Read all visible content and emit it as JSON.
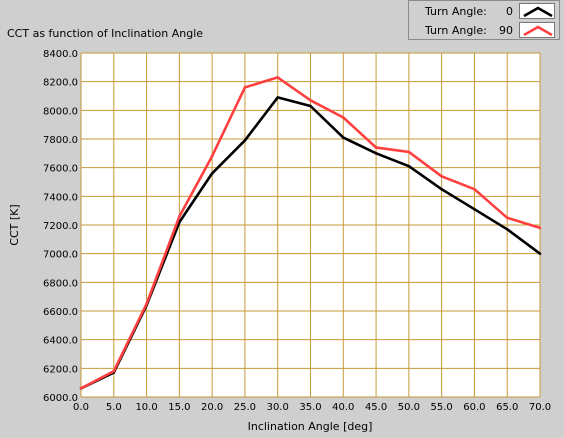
{
  "chart_data": {
    "type": "line",
    "title": "CCT as function of Inclination Angle",
    "xlabel": "Inclination Angle [deg]",
    "ylabel": "CCT [K]",
    "xlim": [
      0,
      70
    ],
    "ylim": [
      6000,
      8400
    ],
    "x_ticks": [
      "0.0",
      "5.0",
      "10.0",
      "15.0",
      "20.0",
      "25.0",
      "30.0",
      "35.0",
      "40.0",
      "45.0",
      "50.0",
      "55.0",
      "60.0",
      "65.0",
      "70.0"
    ],
    "y_ticks": [
      "6000.0",
      "6200.0",
      "6400.0",
      "6600.0",
      "6800.0",
      "7000.0",
      "7200.0",
      "7400.0",
      "7600.0",
      "7800.0",
      "8000.0",
      "8200.0",
      "8400.0"
    ],
    "grid": true,
    "x": [
      0,
      5,
      10,
      15,
      20,
      25,
      30,
      35,
      40,
      45,
      50,
      55,
      60,
      65,
      70
    ],
    "series": [
      {
        "label": "Turn Angle:",
        "value": "0",
        "color": "#000000",
        "values": [
          6060,
          6170,
          6640,
          7220,
          7560,
          7790,
          8090,
          8030,
          7810,
          7700,
          7610,
          7450,
          7310,
          7170,
          7000
        ]
      },
      {
        "label": "Turn Angle:",
        "value": "90",
        "color": "#ff4040",
        "values": [
          6060,
          6180,
          6650,
          7260,
          7680,
          8160,
          8230,
          8070,
          7950,
          7740,
          7710,
          7540,
          7450,
          7250,
          7180
        ]
      }
    ],
    "legend_position": "top-right",
    "plot_background": "#ffffff",
    "grid_color": "#c79a3a"
  }
}
